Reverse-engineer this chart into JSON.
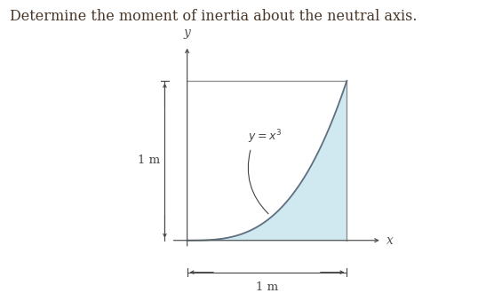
{
  "title": "Determine the moment of inertia about the neutral axis.",
  "title_color": "#4a3728",
  "title_fontsize": 11.5,
  "bg_color": "#ffffff",
  "fill_color": "#b8dce8",
  "fill_alpha": 0.65,
  "curve_color": "#607080",
  "axis_color": "#555555",
  "line_color": "#888888",
  "dim_color": "#444444",
  "label_1m_left": "1 m",
  "label_1m_bottom": "1 m",
  "x_label": "x",
  "y_label": "y",
  "figwidth": 5.65,
  "figheight": 3.39,
  "dpi": 100
}
